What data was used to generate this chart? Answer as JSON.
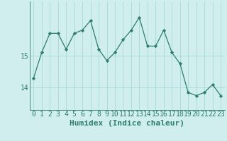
{
  "x": [
    0,
    1,
    2,
    3,
    4,
    5,
    6,
    7,
    8,
    9,
    10,
    11,
    12,
    13,
    14,
    15,
    16,
    17,
    18,
    19,
    20,
    21,
    22,
    23
  ],
  "y": [
    14.3,
    15.1,
    15.7,
    15.7,
    15.2,
    15.7,
    15.8,
    16.1,
    15.2,
    14.85,
    15.1,
    15.5,
    15.8,
    16.2,
    15.3,
    15.3,
    15.8,
    15.1,
    14.75,
    13.85,
    13.75,
    13.85,
    14.1,
    13.75
  ],
  "line_color": "#2e7d6e",
  "marker": "D",
  "marker_size": 2.2,
  "bg_color": "#d0eeee",
  "grid_color": "#a8d8d8",
  "xlabel": "Humidex (Indice chaleur)",
  "yticks": [
    14,
    15
  ],
  "ylim": [
    13.3,
    16.7
  ],
  "xlim": [
    -0.5,
    23.5
  ],
  "font_color": "#2e7d6e",
  "xlabel_fontsize": 8,
  "tick_fontsize": 7,
  "lw": 0.9
}
